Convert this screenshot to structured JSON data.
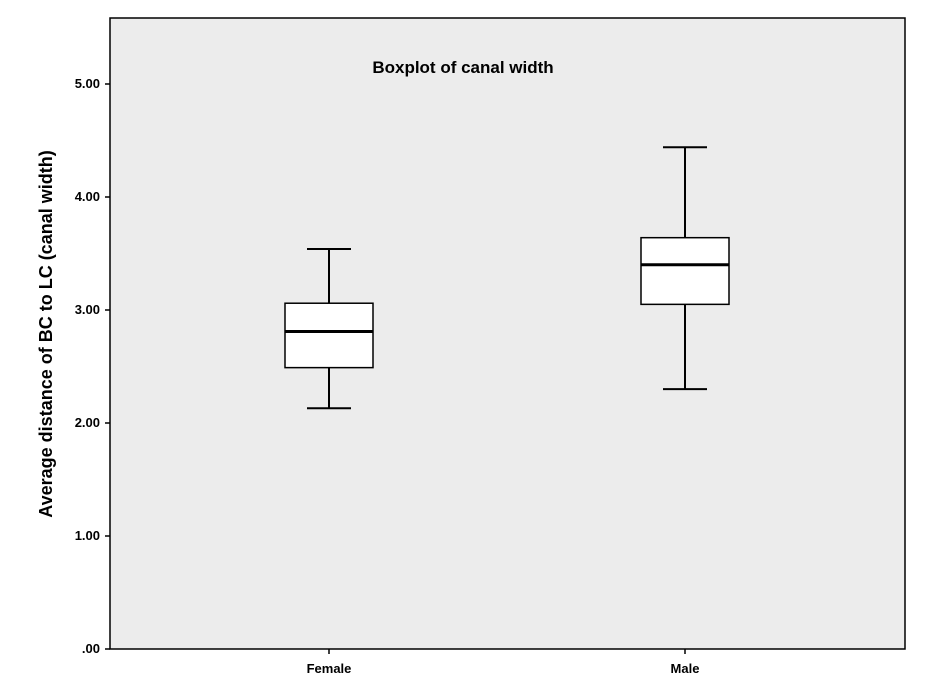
{
  "chart_data": {
    "type": "boxplot",
    "title": "Boxplot of canal width",
    "xlabel": "",
    "ylabel": "Average distance of BC to LC (canal width)",
    "ylim": [
      0,
      5.6
    ],
    "yticks": [
      0,
      1,
      2,
      3,
      4,
      5
    ],
    "ytick_labels": [
      ".00",
      "1.00",
      "2.00",
      "3.00",
      "4.00",
      "5.00"
    ],
    "grid": false,
    "categories": [
      "Female",
      "Male"
    ],
    "boxes": [
      {
        "category": "Female",
        "min": 2.13,
        "q1": 2.49,
        "median": 2.81,
        "q3": 3.06,
        "max": 3.54
      },
      {
        "category": "Male",
        "min": 2.3,
        "q1": 3.05,
        "median": 3.4,
        "q3": 3.64,
        "max": 4.44
      }
    ]
  }
}
